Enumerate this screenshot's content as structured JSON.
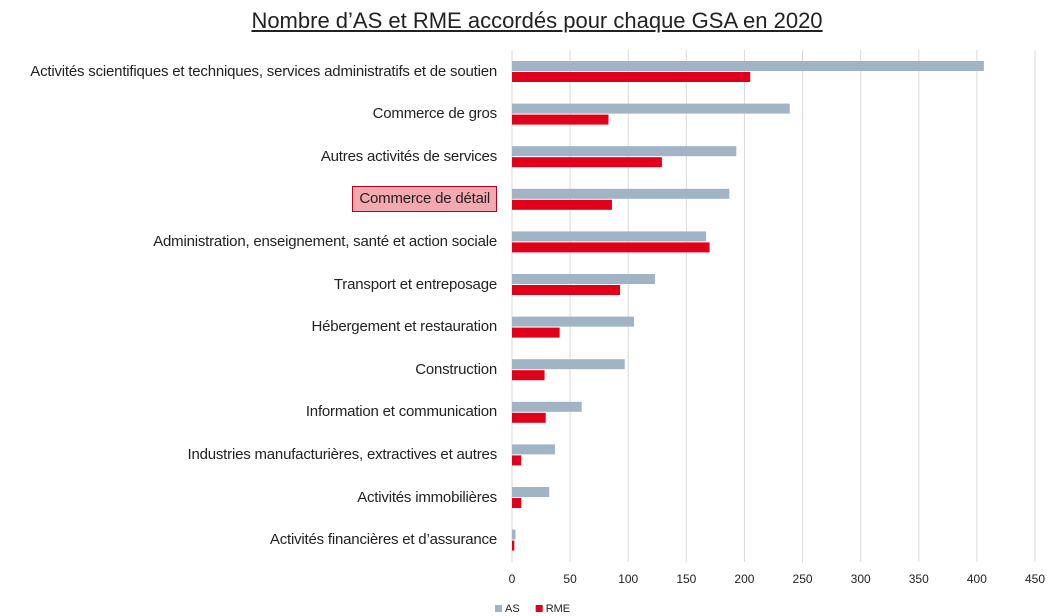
{
  "chart_data": {
    "type": "bar",
    "orientation": "horizontal",
    "title": "Nombre d’AS et RME accordés pour chaque GSA en 2020",
    "categories": [
      "Activités scientifiques et techniques, services administratifs et de soutien",
      "Commerce de gros",
      "Autres activités de services",
      "Commerce de détail",
      "Administration, enseignement, santé et action sociale",
      "Transport et entreposage",
      "Hébergement et restauration",
      "Construction",
      "Information et communication",
      "Industries manufacturières, extractives et autres",
      "Activités immobilières",
      "Activités financières et d’assurance"
    ],
    "series": [
      {
        "name": "AS",
        "color": "#a0b4c5",
        "values": [
          406,
          239,
          193,
          187,
          167,
          123,
          105,
          97,
          60,
          37,
          32,
          3
        ]
      },
      {
        "name": "RME",
        "color": "#e1001a",
        "values": [
          205,
          83,
          129,
          86,
          170,
          93,
          41,
          28,
          29,
          8,
          8,
          2
        ]
      }
    ],
    "xlim": [
      0,
      450
    ],
    "xticks": [
      0,
      50,
      100,
      150,
      200,
      250,
      300,
      350,
      400,
      450
    ],
    "grid": true,
    "legend": "bottom",
    "highlight": 3
  }
}
